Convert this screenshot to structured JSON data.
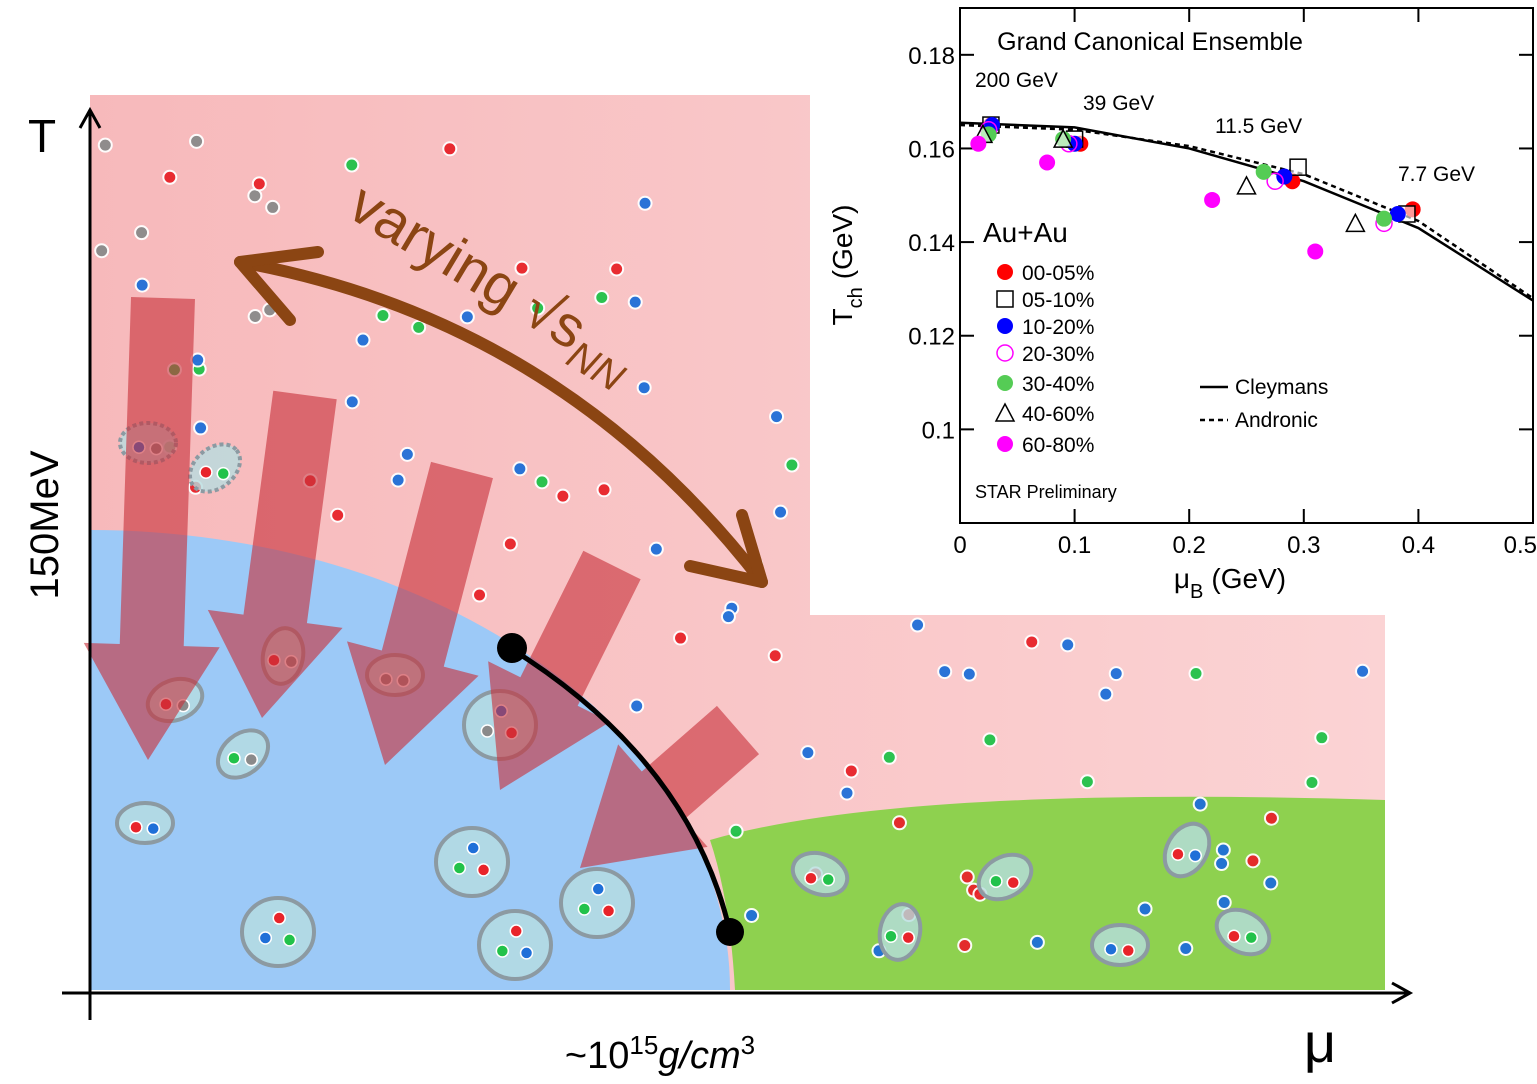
{
  "diagram": {
    "y_axis_label": "T",
    "y_scale_label": "150MeV",
    "x_axis_label": "μ",
    "x_scale_label": {
      "prefix": "~10",
      "exponent": "15",
      "unit": "g/cm",
      "unit_exponent": "3"
    },
    "arrow_label": {
      "text": "varying √s",
      "subscript": "NN"
    }
  },
  "chart_data": {
    "type": "scatter",
    "title": "Grand Canonical Ensemble",
    "x_label": {
      "text": "μ",
      "subscript": "B",
      "unit": "(GeV)"
    },
    "y_label": {
      "text": "T",
      "subscript": "ch",
      "unit": "(GeV)"
    },
    "legend_title": "Au+Au",
    "annotations": [
      "200 GeV",
      "39 GeV",
      "11.5 GeV",
      "7.7 GeV",
      "STAR Preliminary"
    ],
    "xlim": [
      0,
      0.5
    ],
    "xticks": [
      0,
      0.1,
      0.2,
      0.3,
      0.4,
      0.5
    ],
    "ylim": [
      0.08,
      0.19
    ],
    "yticks": [
      0.1,
      0.12,
      0.14,
      0.16,
      0.18
    ],
    "series": [
      {
        "name": "00-05%",
        "color": "#ff0000",
        "marker": "filled-circle",
        "x": [
          0.027,
          0.105,
          0.29,
          0.395
        ],
        "values": [
          0.165,
          0.161,
          0.153,
          0.147
        ]
      },
      {
        "name": "05-10%",
        "color": "#000000",
        "marker": "open-square",
        "x": [
          0.027,
          0.1,
          0.295,
          0.39
        ],
        "values": [
          0.165,
          0.162,
          0.156,
          0.146
        ]
      },
      {
        "name": "10-20%",
        "color": "#0000ff",
        "marker": "filled-circle",
        "x": [
          0.028,
          0.1,
          0.283,
          0.382
        ],
        "values": [
          0.165,
          0.161,
          0.154,
          0.146
        ]
      },
      {
        "name": "20-30%",
        "color": "#ff00ff",
        "marker": "open-circle",
        "x": [
          0.025,
          0.095,
          0.275,
          0.37
        ],
        "values": [
          0.164,
          0.161,
          0.153,
          0.144
        ]
      },
      {
        "name": "30-40%",
        "color": "#55cc55",
        "marker": "filled-circle",
        "x": [
          0.025,
          0.09,
          0.265,
          0.37
        ],
        "values": [
          0.163,
          0.162,
          0.155,
          0.145
        ]
      },
      {
        "name": "40-60%",
        "color": "#000000",
        "marker": "open-triangle",
        "x": [
          0.02,
          0.09,
          0.25,
          0.345
        ],
        "values": [
          0.163,
          0.162,
          0.152,
          0.144
        ]
      },
      {
        "name": "60-80%",
        "color": "#ff00ff",
        "marker": "filled-circle",
        "x": [
          0.016,
          0.076,
          0.22,
          0.31
        ],
        "values": [
          0.161,
          0.157,
          0.149,
          0.138
        ]
      }
    ],
    "lines": [
      {
        "name": "Cleymans",
        "style": "solid",
        "color": "#000000",
        "x": [
          0,
          0.1,
          0.2,
          0.3,
          0.4,
          0.5
        ],
        "values": [
          0.1655,
          0.1645,
          0.16,
          0.153,
          0.143,
          0.1275
        ]
      },
      {
        "name": "Andronic",
        "style": "dashed",
        "color": "#000000",
        "x": [
          0,
          0.1,
          0.2,
          0.3,
          0.4,
          0.5
        ],
        "values": [
          0.165,
          0.164,
          0.1605,
          0.1545,
          0.1445,
          0.128
        ]
      }
    ]
  }
}
